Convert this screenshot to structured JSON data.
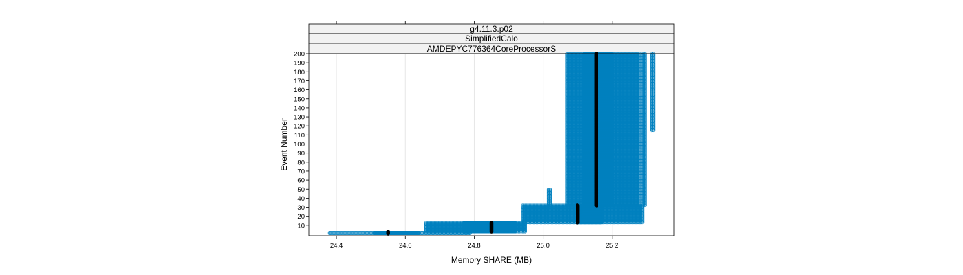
{
  "chart_data": {
    "type": "scatter",
    "title": "",
    "strips": [
      "g4.11.3.p02",
      "SimplifiedCalo",
      "AMDEPYC776364CoreProcessorS"
    ],
    "xlabel": "Memory SHARE (MB)",
    "ylabel": "Event Number",
    "xlim": [
      24.32,
      25.38
    ],
    "ylim": [
      0,
      200
    ],
    "x_ticks": [
      "24.4",
      "24.6",
      "24.8",
      "25.0",
      "25.2"
    ],
    "x_tick_values": [
      24.4,
      24.6,
      24.8,
      25.0,
      25.2
    ],
    "y_ticks": [
      "10",
      "20",
      "30",
      "40",
      "50",
      "60",
      "70",
      "80",
      "90",
      "100",
      "110",
      "120",
      "130",
      "140",
      "150",
      "160",
      "170",
      "180",
      "190",
      "200"
    ],
    "y_tick_values": [
      10,
      20,
      30,
      40,
      50,
      60,
      70,
      80,
      90,
      100,
      110,
      120,
      130,
      140,
      150,
      160,
      170,
      180,
      190,
      200
    ],
    "grid": "vertical",
    "point_color": "#0080bf",
    "median_color": "#000000",
    "point_groups": [
      {
        "x_min": 24.38,
        "x_max": 24.79,
        "x_step": 0.004,
        "y_min": 1,
        "y_max": 2
      },
      {
        "x_min": 24.51,
        "x_max": 24.64,
        "x_step": 0.0015,
        "y_min": 1,
        "y_max": 2
      },
      {
        "x_min": 24.66,
        "x_max": 24.95,
        "x_step": 0.004,
        "y_min": 3,
        "y_max": 13
      },
      {
        "x_min": 24.77,
        "x_max": 24.92,
        "x_step": 0.0015,
        "y_min": 3,
        "y_max": 13
      },
      {
        "x_min": 24.94,
        "x_max": 25.29,
        "x_step": 0.004,
        "y_min": 13,
        "y_max": 32
      },
      {
        "x_min": 25.1,
        "x_max": 25.17,
        "x_step": 0.0015,
        "y_min": 13,
        "y_max": 32
      },
      {
        "x_min": 25.07,
        "x_max": 25.28,
        "x_step": 0.004,
        "y_min": 32,
        "y_max": 200
      },
      {
        "x_min": 25.12,
        "x_max": 25.2,
        "x_step": 0.0015,
        "y_min": 32,
        "y_max": 200
      },
      {
        "x_min": 25.285,
        "x_max": 25.295,
        "x_step": 0.005,
        "y_min": 32,
        "y_max": 200
      },
      {
        "x_min": 25.315,
        "x_max": 25.32,
        "x_step": 0.005,
        "y_min": 115,
        "y_max": 200
      },
      {
        "x_min": 25.015,
        "x_max": 25.02,
        "x_step": 0.005,
        "y_min": 32,
        "y_max": 50
      }
    ],
    "medians": [
      {
        "x": 24.55,
        "y_min": 1,
        "y_max": 3
      },
      {
        "x": 24.85,
        "y_min": 3,
        "y_max": 13
      },
      {
        "x": 25.1,
        "y_min": 13,
        "y_max": 32
      },
      {
        "x": 25.155,
        "y_min": 32,
        "y_max": 200
      }
    ]
  }
}
